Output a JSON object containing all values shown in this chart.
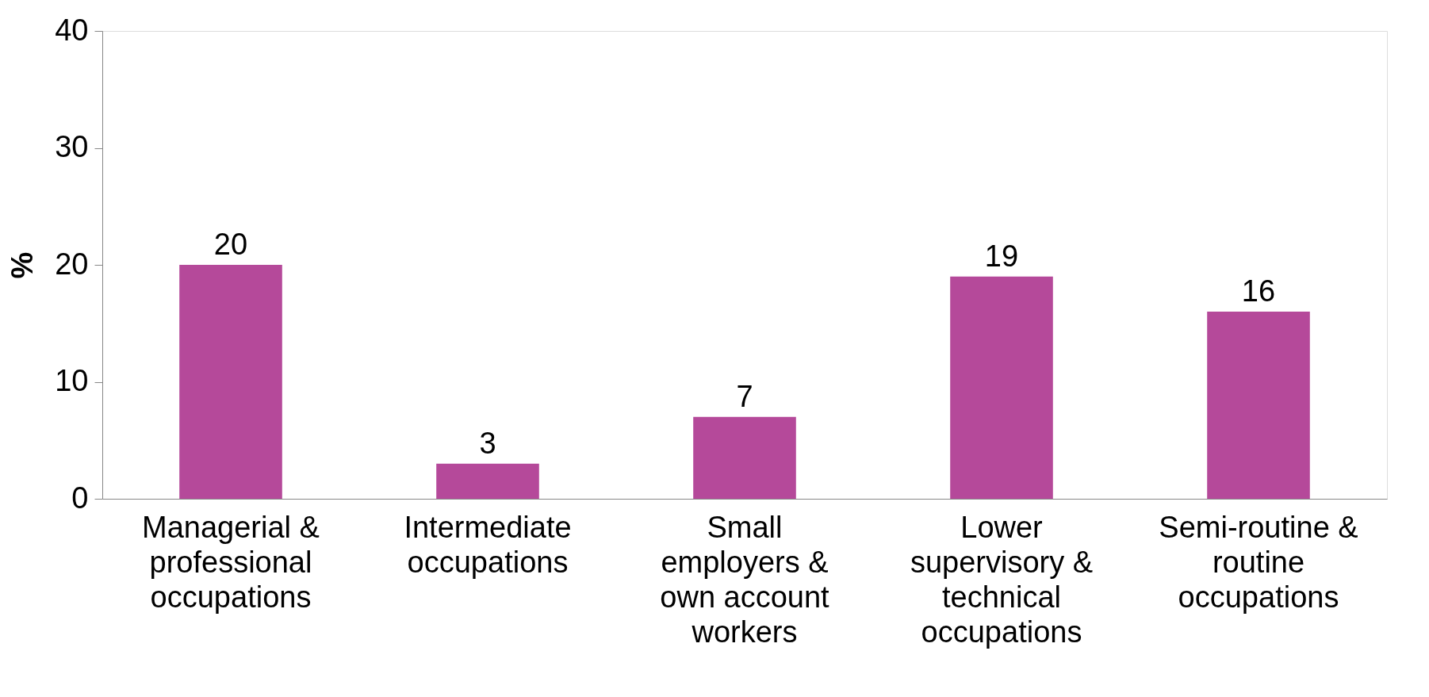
{
  "chart_data": {
    "type": "bar",
    "ylabel": "%",
    "categories": [
      "Managerial & professional occupations",
      "Intermediate occupations",
      "Small employers & own account workers",
      "Lower supervisory & technical occupations",
      "Semi-routine & routine occupations"
    ],
    "values": [
      20,
      3,
      7,
      19,
      16
    ],
    "color": "#b5499a",
    "ylim": [
      0,
      40
    ],
    "yticks": [
      0,
      10,
      20,
      30,
      40
    ],
    "grid": false,
    "data_labels": true
  }
}
